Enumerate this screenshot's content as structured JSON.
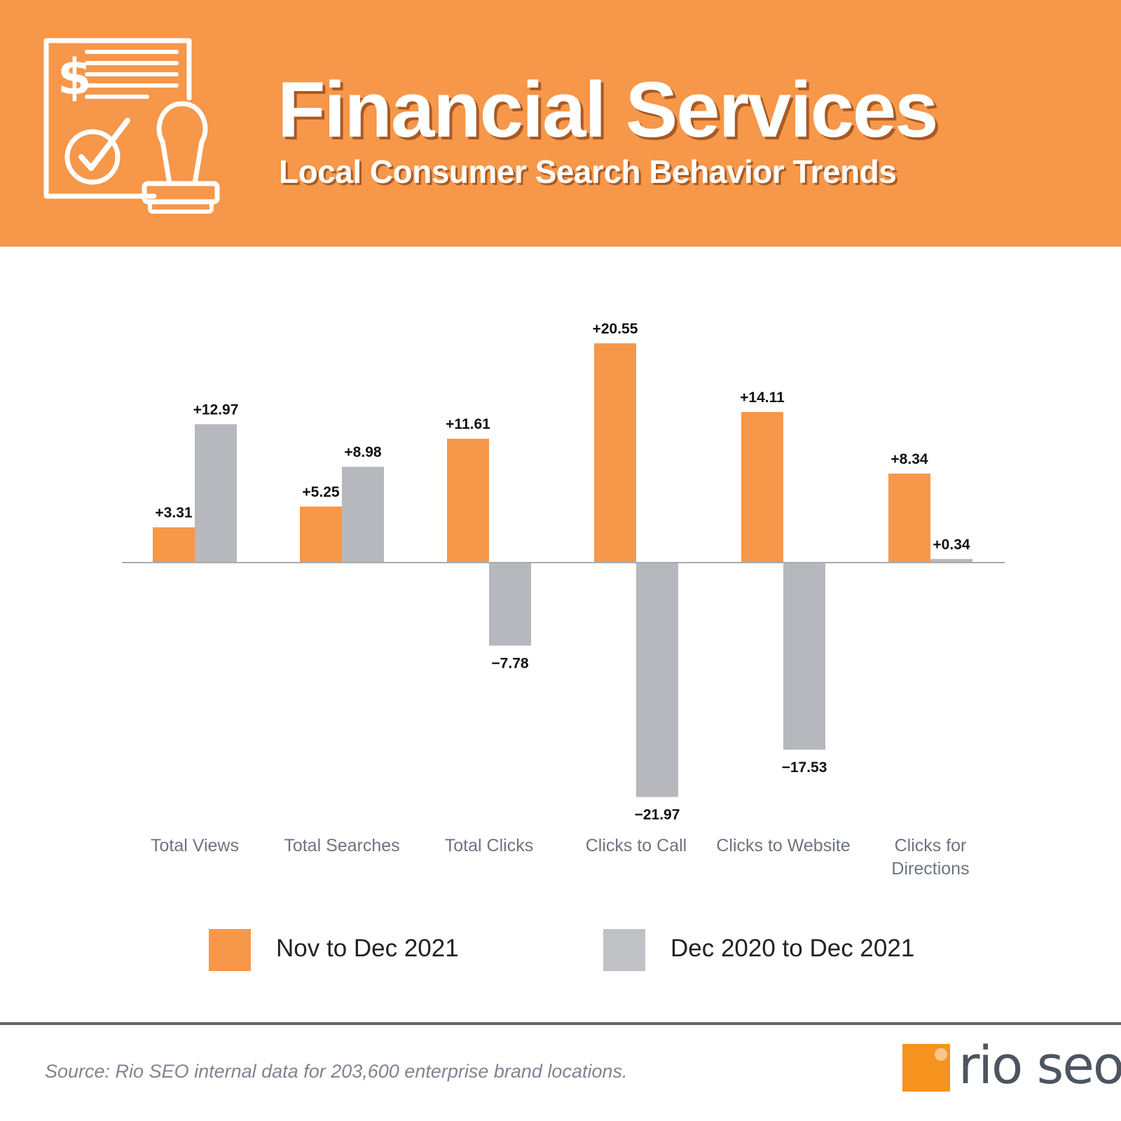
{
  "header": {
    "title": "Financial Services",
    "subtitle": "Local Consumer Search Behavior Trends",
    "icon": "financial-document-stamp-icon"
  },
  "chart_data": {
    "type": "bar",
    "categories": [
      "Total Views",
      "Total Searches",
      "Total Clicks",
      "Clicks to Call",
      "Clicks to Website",
      "Clicks for Directions"
    ],
    "series": [
      {
        "name": "Nov to Dec 2021",
        "color": "#f6974a",
        "values": [
          3.31,
          5.25,
          11.61,
          20.55,
          14.11,
          8.34
        ],
        "labels": [
          "+3.31",
          "+5.25",
          "+11.61",
          "+20.55",
          "+14.11",
          "+8.34"
        ]
      },
      {
        "name": "Dec 2020 to Dec 2021",
        "color": "#b7b8bd",
        "values": [
          12.97,
          8.98,
          -7.78,
          -21.97,
          -17.53,
          0.34
        ],
        "labels": [
          "+12.97",
          "+8.98",
          "−7.78",
          "−21.97",
          "−17.53",
          "+0.34"
        ]
      }
    ],
    "ylim": [
      -21.97,
      20.55
    ],
    "grid": false,
    "legend": "bottom"
  },
  "legend": {
    "items": [
      {
        "label": "Nov to Dec 2021",
        "color": "#f6974a"
      },
      {
        "label": "Dec 2020 to Dec 2021",
        "color": "#c0c1c5"
      }
    ]
  },
  "footer": {
    "source": "Source: Rio SEO internal data for 203,600 enterprise brand locations.",
    "logo_text": "rio seo"
  }
}
